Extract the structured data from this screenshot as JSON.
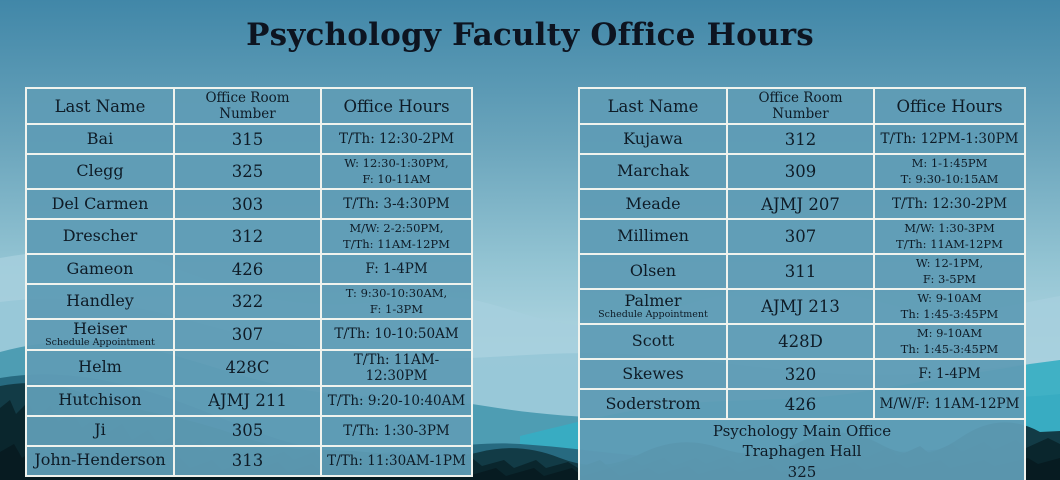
{
  "title": "Psychology Faculty Office Hours",
  "columns": [
    "Last Name",
    "Office Room Number",
    "Office Hours"
  ],
  "left_table": {
    "rows": [
      {
        "name": "Bai",
        "room": "315",
        "hours": [
          "T/Th: 12:30-2PM"
        ]
      },
      {
        "name": "Clegg",
        "room": "325",
        "hours": [
          "W: 12:30-1:30PM,",
          "F: 10-11AM"
        ]
      },
      {
        "name": "Del Carmen",
        "room": "303",
        "hours": [
          "T/Th: 3-4:30PM"
        ]
      },
      {
        "name": "Drescher",
        "room": "312",
        "hours": [
          "M/W: 2-2:50PM,",
          "T/Th: 11AM-12PM"
        ]
      },
      {
        "name": "Gameon",
        "room": "426",
        "hours": [
          "F: 1-4PM"
        ]
      },
      {
        "name": "Handley",
        "room": "322",
        "hours": [
          "T: 9:30-10:30AM,",
          "F: 1-3PM"
        ]
      },
      {
        "name": "Heiser",
        "note": "Schedule Appointment",
        "room": "307",
        "hours": [
          "T/Th: 10-10:50AM"
        ]
      },
      {
        "name": "Helm",
        "room": "428C",
        "hours": [
          "T/Th: 11AM-12:30PM"
        ]
      },
      {
        "name": "Hutchison",
        "room": "AJMJ 211",
        "hours": [
          "T/Th: 9:20-10:40AM"
        ]
      },
      {
        "name": "Ji",
        "room": "305",
        "hours": [
          "T/Th: 1:30-3PM"
        ]
      },
      {
        "name": "John-Henderson",
        "room": "313",
        "hours": [
          "T/Th: 11:30AM-1PM"
        ]
      }
    ]
  },
  "right_table": {
    "rows": [
      {
        "name": "Kujawa",
        "room": "312",
        "hours": [
          "T/Th: 12PM-1:30PM"
        ]
      },
      {
        "name": "Marchak",
        "room": "309",
        "hours": [
          "M: 1-1:45PM",
          "T: 9:30-10:15AM"
        ]
      },
      {
        "name": "Meade",
        "room": "AJMJ 207",
        "hours": [
          "T/Th: 12:30-2PM"
        ]
      },
      {
        "name": "Millimen",
        "room": "307",
        "hours": [
          "M/W: 1:30-3PM",
          "T/Th: 11AM-12PM"
        ]
      },
      {
        "name": "Olsen",
        "room": "311",
        "hours": [
          "W: 12-1PM,",
          "F: 3-5PM"
        ]
      },
      {
        "name": "Palmer",
        "note": "Schedule Appointment",
        "room": "AJMJ 213",
        "hours": [
          "W: 9-10AM",
          "Th: 1:45-3:45PM"
        ]
      },
      {
        "name": "Scott",
        "room": "428D",
        "hours": [
          "M: 9-10AM",
          "Th: 1:45-3:45PM"
        ]
      },
      {
        "name": "Skewes",
        "room": "320",
        "hours": [
          "F: 1-4PM"
        ]
      },
      {
        "name": "Soderstrom",
        "room": "426",
        "hours": [
          "M/W/F: 11AM-12PM"
        ]
      }
    ],
    "footer": [
      "Psychology Main Office",
      "Traphagen Hall",
      "325"
    ]
  },
  "colors": {
    "cell_fill": "#5f9cb5",
    "cell_border": "#f0f3ee",
    "text": "#0e1b26",
    "title_text": "#0d1420",
    "sky_top": "#4187a8",
    "sky_light": "#b2d7e2",
    "mountain_teal": "#276a80",
    "forest_dark": "#0a262d"
  }
}
